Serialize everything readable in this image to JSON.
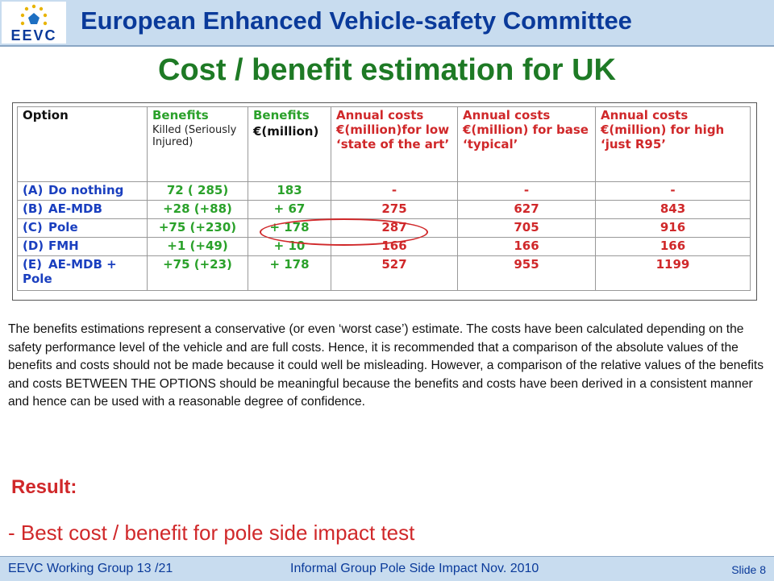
{
  "header": {
    "title": "European Enhanced Vehicle-safety Committee",
    "logo_text": "EEVC",
    "logo_icon": "stars-circle-icon"
  },
  "slide_title": "Cost / benefit estimation for UK",
  "table": {
    "headers": [
      {
        "main": "Option",
        "sub": "",
        "sub2": ""
      },
      {
        "main": "Benefits",
        "sub": "Killed (Seriously Injured)",
        "sub2": ""
      },
      {
        "main": "Benefits",
        "sub": "€(million)",
        "sub2": ""
      },
      {
        "main": "Annual costs",
        "sub": "€(million)for low",
        "sub2": "‘state of the art’"
      },
      {
        "main": "Annual costs",
        "sub": "€(million) for base",
        "sub2": "‘typical’"
      },
      {
        "main": "Annual costs",
        "sub": "€(million) for high",
        "sub2": "‘just R95’"
      }
    ],
    "rows": [
      {
        "letter": "(A)",
        "option": "Do nothing",
        "killed": "72 ( 285)",
        "benefit": "183",
        "low": "-",
        "base": "-",
        "high": "-"
      },
      {
        "letter": "(B)",
        "option": "AE-MDB",
        "killed": "+28 (+88)",
        "benefit": "+ 67",
        "low": "275",
        "base": "627",
        "high": "843"
      },
      {
        "letter": "(C)",
        "option": "Pole",
        "killed": "+75 (+230)",
        "benefit": "+ 178",
        "low": "287",
        "base": "705",
        "high": "916"
      },
      {
        "letter": "(D)",
        "option": "FMH",
        "killed": "+1 (+49)",
        "benefit": "+ 10",
        "low": "166",
        "base": "166",
        "high": "166"
      },
      {
        "letter": "(E)",
        "option": "AE-MDB + Pole",
        "killed": "+75 (+23)",
        "benefit": "+ 178",
        "low": "527",
        "base": "955",
        "high": "1199"
      }
    ]
  },
  "paragraph": "The benefits estimations represent a conservative (or even ‘worst case’) estimate. The costs have been calculated depending on the safety performance level of the vehicle and are full costs. Hence, it is recommended that a comparison of the absolute values of the benefits and costs should not be made because it could well be misleading. However, a comparison of the relative values of the benefits and costs BETWEEN THE OPTIONS should be meaningful because the benefits and costs have been derived in a consistent manner and hence can be used with a reasonable degree of confidence.",
  "result": {
    "label": "Result:",
    "item": "- Best cost / benefit for pole side impact test"
  },
  "footer": {
    "left": "EEVC  Working Group 13 /21",
    "center": "Informal Group Pole Side Impact Nov. 2010",
    "right": "Slide 8"
  },
  "colors": {
    "header_bg": "#c8dcef",
    "title_blue": "#0a3a9a",
    "slide_title_green": "#1e7a25",
    "accent_red": "#d0282a",
    "option_blue": "#1a3fbf",
    "benefit_green": "#2aa12a"
  }
}
